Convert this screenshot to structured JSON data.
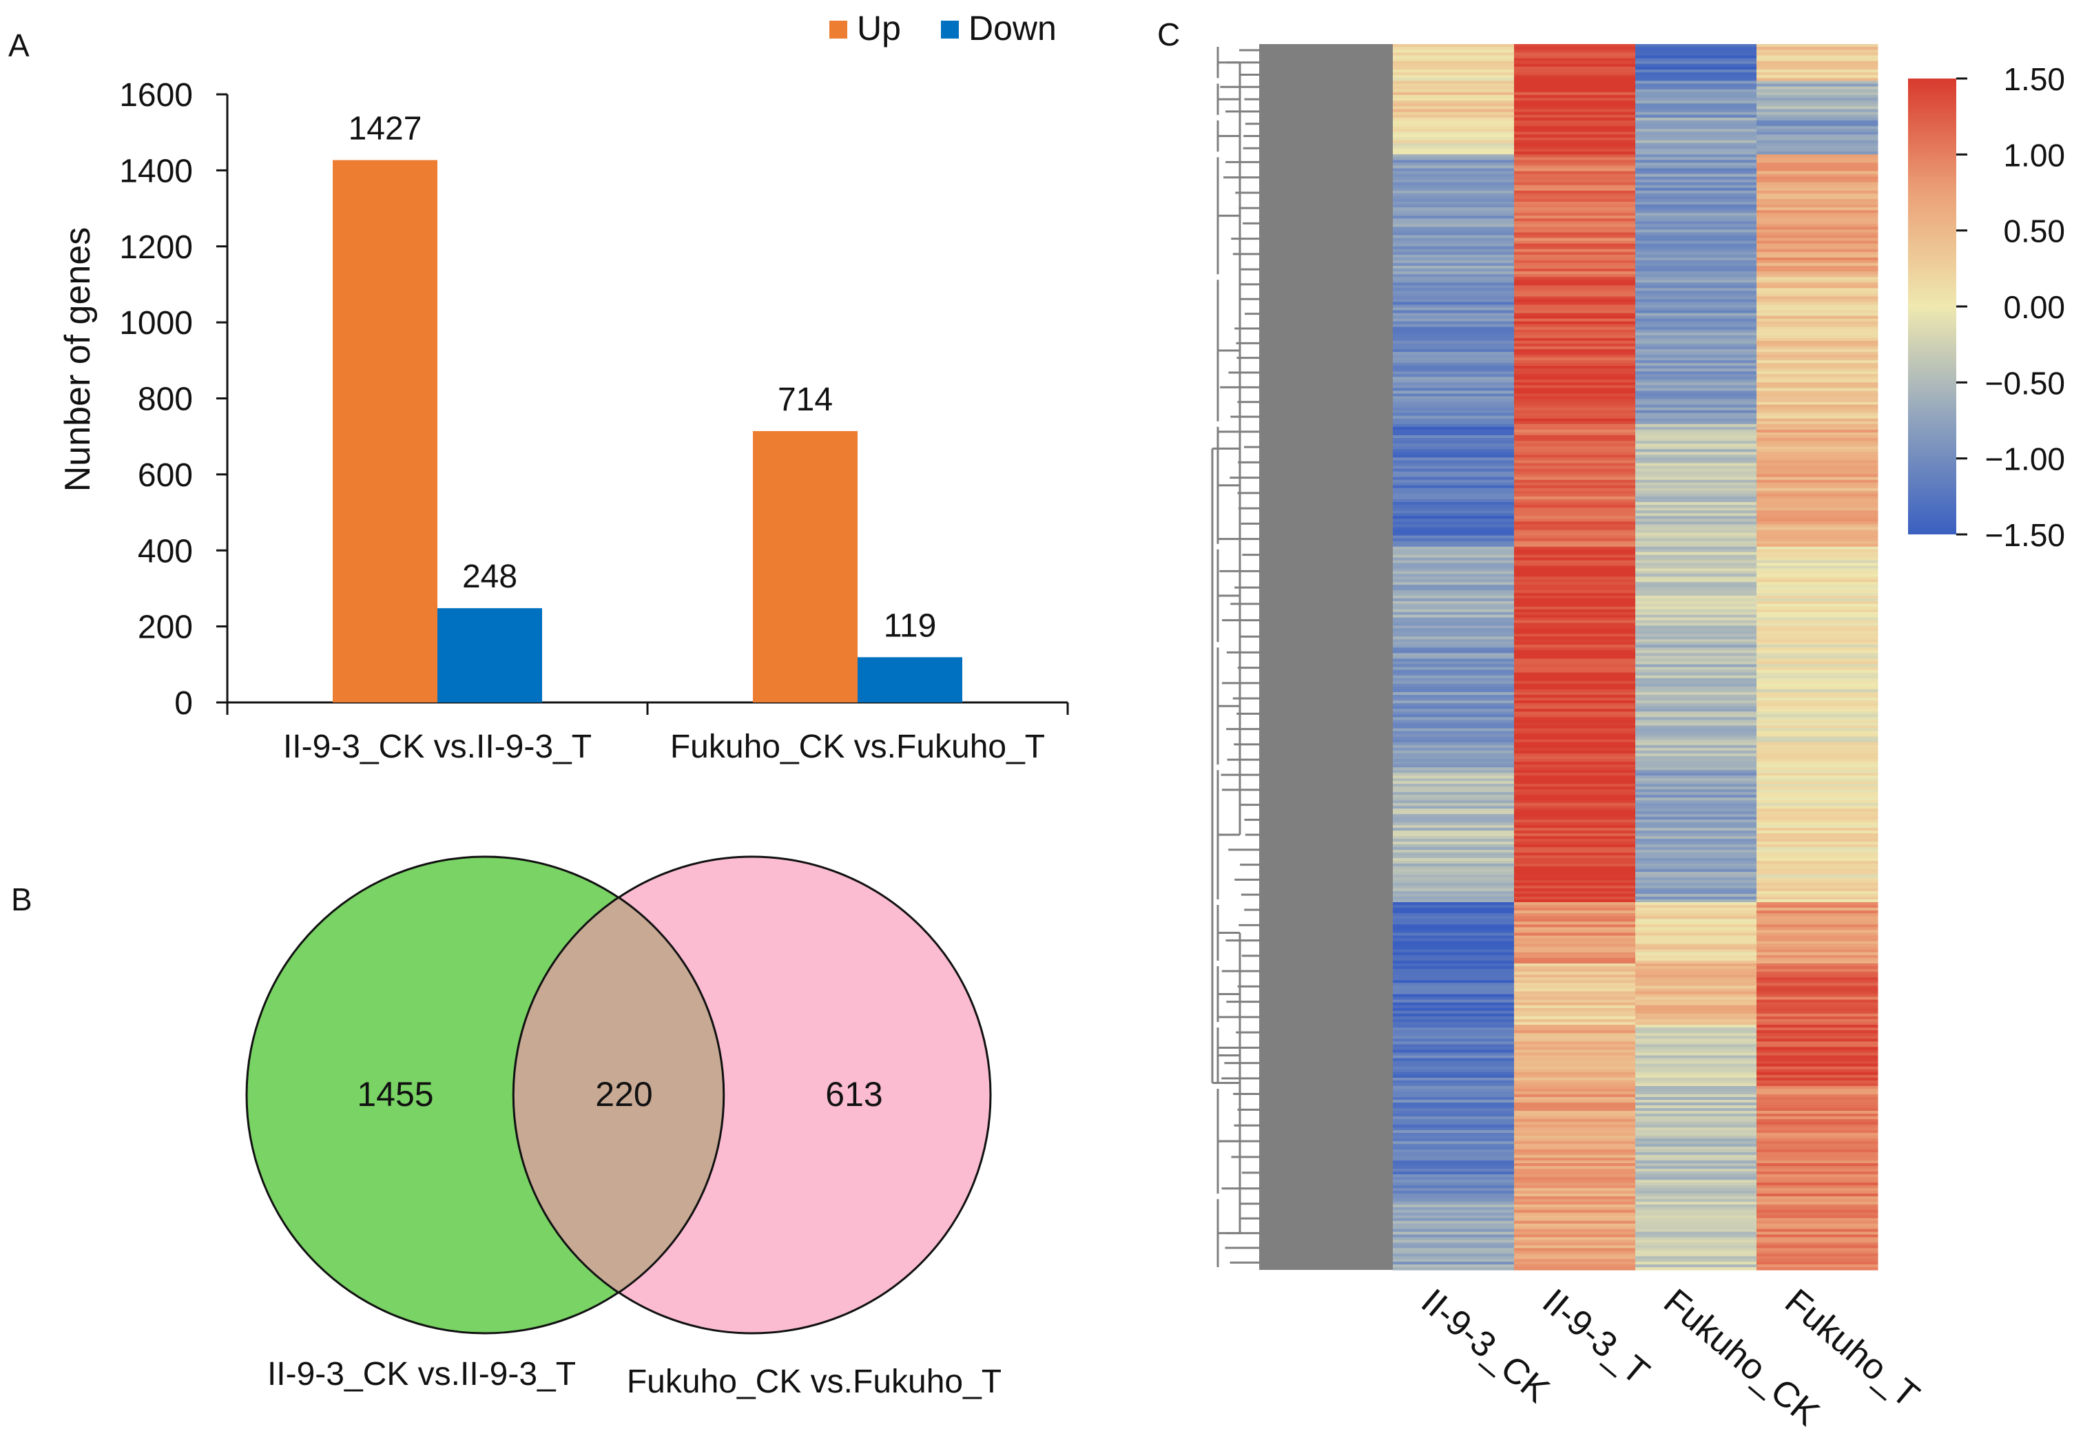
{
  "panels": {
    "a_label": "A",
    "b_label": "B",
    "c_label": "C"
  },
  "chart_data": [
    {
      "type": "bar",
      "categories": [
        "II-9-3_CK vs.II-9-3_T",
        "Fukuho_CK vs.Fukuho_T"
      ],
      "series": [
        {
          "name": "Up",
          "values": [
            1427,
            714
          ],
          "color": "#ED7D31"
        },
        {
          "name": "Down",
          "values": [
            248,
            119
          ],
          "color": "#0070C0"
        }
      ],
      "title": "",
      "xlabel": "",
      "ylabel": "Nunber of genes",
      "ylim": [
        0,
        1600
      ],
      "yticks": [
        0,
        200,
        400,
        600,
        800,
        1000,
        1200,
        1400,
        1600
      ],
      "data_labels": true,
      "legend_position": "top-right",
      "grid": false
    },
    {
      "type": "venn",
      "sets": [
        {
          "name": "II-9-3_CK vs.II-9-3_T",
          "only": 1455,
          "color": "#7AD365"
        },
        {
          "name": "Fukuho_CK vs.Fukuho_T",
          "only": 613,
          "color": "#FBBCD2"
        }
      ],
      "overlap": 220,
      "overlap_color": "#C7A994"
    },
    {
      "type": "heatmap",
      "columns": [
        "II-9-3_CK",
        "II-9-3_T",
        "Fukuho_CK",
        "Fukuho_T"
      ],
      "dendrogram": "rows",
      "colorscale": {
        "min": -1.5,
        "max": 1.5,
        "ticks": [
          "1.50",
          "1.00",
          "0.50",
          "0.00",
          "−0.50",
          "−1.00",
          "−1.50"
        ],
        "colors": [
          "#3A5FC0",
          "#8FA3BE",
          "#EFE8B0",
          "#EBA177",
          "#D83A2E"
        ]
      },
      "blocks": [
        {
          "rows": 0.03,
          "values": [
            0.1,
            1.4,
            -1.3,
            0.3
          ]
        },
        {
          "rows": 0.03,
          "values": [
            0.3,
            1.4,
            -0.9,
            -0.6
          ]
        },
        {
          "rows": 0.03,
          "values": [
            0.05,
            1.45,
            -0.7,
            -0.9
          ]
        },
        {
          "rows": 0.1,
          "values": [
            -0.8,
            1.1,
            -0.9,
            0.7
          ]
        },
        {
          "rows": 0.12,
          "values": [
            -1.0,
            1.35,
            -0.85,
            0.35
          ]
        },
        {
          "rows": 0.1,
          "values": [
            -1.25,
            1.15,
            -0.4,
            0.6
          ]
        },
        {
          "rows": 0.08,
          "values": [
            -0.7,
            1.45,
            -0.35,
            0.05
          ]
        },
        {
          "rows": 0.1,
          "values": [
            -0.9,
            1.45,
            -0.5,
            0.0
          ]
        },
        {
          "rows": 0.11,
          "values": [
            -0.45,
            1.45,
            -0.75,
            0.1
          ]
        },
        {
          "rows": 0.05,
          "values": [
            -1.45,
            0.8,
            0.2,
            0.8
          ]
        },
        {
          "rows": 0.05,
          "values": [
            -1.3,
            0.3,
            0.5,
            1.2
          ]
        },
        {
          "rows": 0.05,
          "values": [
            -1.2,
            0.6,
            -0.3,
            1.35
          ]
        },
        {
          "rows": 0.09,
          "values": [
            -1.1,
            0.7,
            -0.4,
            1.0
          ]
        },
        {
          "rows": 0.06,
          "values": [
            -0.7,
            0.7,
            -0.3,
            0.95
          ]
        }
      ]
    }
  ]
}
